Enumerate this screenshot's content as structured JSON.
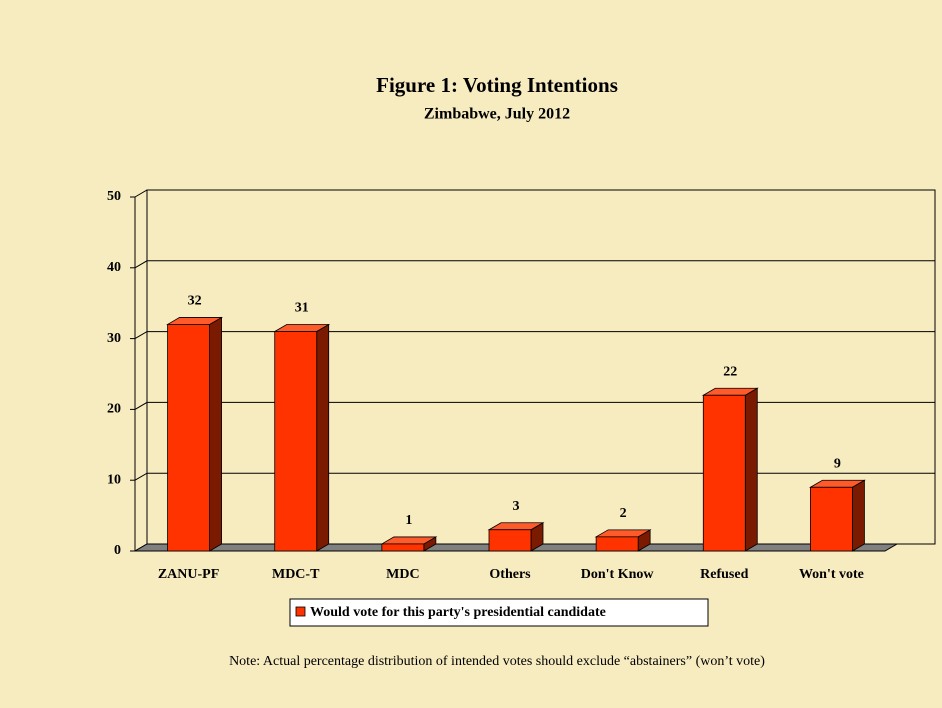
{
  "chart_data": {
    "type": "bar3d",
    "title": "Figure 1: Voting Intentions",
    "subtitle": "Zimbabwe, July 2012",
    "categories": [
      "ZANU-PF",
      "MDC-T",
      "MDC",
      "Others",
      "Don't Know",
      "Refused",
      "Won't vote"
    ],
    "series": [
      {
        "name": "Would vote for this party's presidential candidate",
        "color": "#ff3300",
        "values": [
          32,
          31,
          1,
          3,
          2,
          22,
          9
        ]
      }
    ],
    "ylim": [
      0,
      50
    ],
    "yticks": [
      0,
      10,
      20,
      30,
      40,
      50
    ],
    "grid": true,
    "legend": "bottom",
    "note": "Note: Actual percentage distribution of intended votes should exclude “abstainers” (won’t vote)"
  }
}
